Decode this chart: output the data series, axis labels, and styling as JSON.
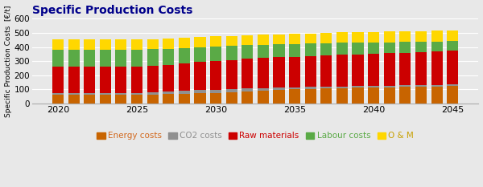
{
  "title": "Specific Production Costs",
  "ylabel": "Specific Production Costs  [€/t]",
  "ylim": [
    0,
    600
  ],
  "yticks": [
    0,
    100,
    200,
    300,
    400,
    500,
    600
  ],
  "years": [
    2020,
    2021,
    2022,
    2023,
    2024,
    2025,
    2026,
    2027,
    2028,
    2029,
    2030,
    2031,
    2032,
    2033,
    2034,
    2035,
    2036,
    2037,
    2038,
    2039,
    2040,
    2041,
    2042,
    2043,
    2044,
    2045
  ],
  "energy_costs": [
    60,
    60,
    60,
    60,
    60,
    60,
    62,
    65,
    68,
    72,
    75,
    80,
    85,
    90,
    95,
    100,
    103,
    106,
    108,
    110,
    112,
    114,
    116,
    118,
    120,
    122
  ],
  "co2_costs": [
    15,
    15,
    15,
    15,
    15,
    15,
    16,
    18,
    20,
    22,
    22,
    22,
    20,
    18,
    16,
    14,
    13,
    13,
    13,
    12,
    12,
    12,
    12,
    12,
    12,
    12
  ],
  "raw_materials": [
    185,
    185,
    185,
    185,
    185,
    185,
    188,
    192,
    196,
    200,
    203,
    206,
    210,
    213,
    216,
    218,
    220,
    222,
    224,
    226,
    228,
    230,
    232,
    234,
    236,
    238
  ],
  "labour_costs": [
    120,
    120,
    120,
    120,
    120,
    120,
    118,
    112,
    108,
    105,
    103,
    100,
    97,
    94,
    91,
    90,
    88,
    86,
    84,
    82,
    80,
    78,
    76,
    74,
    72,
    70
  ],
  "om_costs": [
    72,
    72,
    72,
    72,
    72,
    72,
    72,
    72,
    72,
    72,
    72,
    72,
    72,
    72,
    72,
    72,
    72,
    75,
    75,
    75,
    75,
    75,
    75,
    75,
    75,
    75
  ],
  "colors": {
    "energy": "#C86400",
    "co2": "#909090",
    "raw": "#CC0000",
    "labour": "#5AAA46",
    "om": "#FFD700"
  },
  "legend_labels": [
    "Energy costs",
    "CO2 costs",
    "Raw materials",
    "Labour costs",
    "O & M"
  ],
  "legend_text_colors": [
    "#D2691E",
    "#909090",
    "#CC0000",
    "#5AAA46",
    "#C8A000"
  ],
  "background_color": "#e8e8e8",
  "plot_bg_color": "#e8e8e8",
  "title_color": "#00008B",
  "title_fontsize": 10,
  "bar_width": 0.72
}
